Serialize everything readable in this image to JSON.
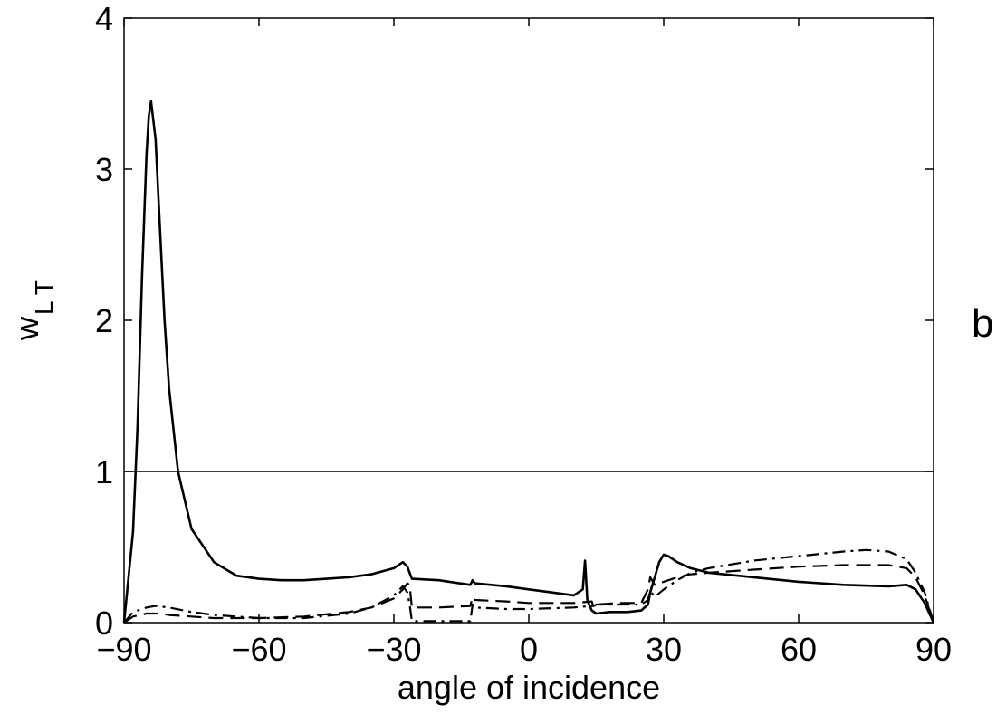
{
  "chart_data": {
    "type": "line",
    "title": "",
    "xlabel": "angle of incidence",
    "ylabel": "w",
    "ylabel_sub": "L T",
    "panel_label": "b",
    "xlim": [
      -90,
      90
    ],
    "ylim": [
      0,
      4
    ],
    "xticks": [
      -90,
      -60,
      -30,
      0,
      30,
      60,
      90
    ],
    "xtick_labels": [
      "−90",
      "−60",
      "−30",
      "0",
      "30",
      "60",
      "90"
    ],
    "yticks": [
      0,
      1,
      2,
      3,
      4
    ],
    "ytick_labels": [
      "0",
      "1",
      "2",
      "3",
      "4"
    ],
    "grid": false,
    "reference_line": {
      "y": 1
    },
    "series": [
      {
        "style": "solid",
        "x": [
          -90,
          -88,
          -87,
          -86,
          -85,
          -84.5,
          -84,
          -83,
          -82,
          -81,
          -80,
          -78,
          -75,
          -70,
          -65,
          -60,
          -55,
          -50,
          -45,
          -40,
          -35,
          -30,
          -28,
          -27,
          -26,
          -20,
          -13,
          -12.5,
          -12,
          -5,
          0,
          5,
          10,
          12,
          12.5,
          13,
          14,
          15,
          18,
          22,
          25,
          26.5,
          27,
          28,
          29,
          30,
          31,
          33,
          36,
          40,
          50,
          60,
          70,
          80,
          84,
          86,
          88,
          90
        ],
        "y": [
          0.0,
          0.6,
          1.3,
          2.3,
          3.1,
          3.35,
          3.45,
          3.2,
          2.6,
          2.0,
          1.55,
          1.0,
          0.62,
          0.4,
          0.31,
          0.29,
          0.28,
          0.28,
          0.29,
          0.3,
          0.32,
          0.36,
          0.4,
          0.37,
          0.29,
          0.28,
          0.25,
          0.28,
          0.26,
          0.24,
          0.22,
          0.2,
          0.18,
          0.22,
          0.41,
          0.15,
          0.08,
          0.06,
          0.07,
          0.07,
          0.08,
          0.12,
          0.2,
          0.3,
          0.4,
          0.45,
          0.44,
          0.4,
          0.36,
          0.33,
          0.3,
          0.27,
          0.25,
          0.24,
          0.25,
          0.22,
          0.13,
          0.0
        ]
      },
      {
        "style": "dashed",
        "x": [
          -90,
          -88,
          -85,
          -82,
          -80,
          -75,
          -70,
          -60,
          -50,
          -40,
          -35,
          -30,
          -28,
          -27,
          -26.5,
          -26,
          -20,
          -13,
          -12.5,
          -12,
          -5,
          0,
          10,
          14,
          14.5,
          15,
          20,
          25,
          26.5,
          27,
          28,
          30,
          33,
          36,
          40,
          50,
          60,
          70,
          80,
          84,
          86,
          88,
          90
        ],
        "y": [
          0.0,
          0.04,
          0.06,
          0.06,
          0.05,
          0.04,
          0.03,
          0.03,
          0.04,
          0.07,
          0.1,
          0.16,
          0.22,
          0.26,
          0.25,
          0.1,
          0.1,
          0.11,
          0.17,
          0.15,
          0.14,
          0.13,
          0.13,
          0.14,
          0.1,
          0.12,
          0.13,
          0.13,
          0.22,
          0.3,
          0.25,
          0.27,
          0.3,
          0.32,
          0.33,
          0.35,
          0.37,
          0.38,
          0.38,
          0.36,
          0.3,
          0.18,
          0.0
        ]
      },
      {
        "style": "dashdot",
        "x": [
          -90,
          -88,
          -85,
          -83,
          -80,
          -75,
          -70,
          -60,
          -50,
          -40,
          -35,
          -30,
          -28,
          -27,
          -26.5,
          -26,
          -20,
          -13,
          -12.5,
          -12,
          -5,
          0,
          10,
          14,
          14.5,
          15,
          20,
          25,
          26.5,
          27,
          28,
          30,
          33,
          36,
          40,
          50,
          60,
          70,
          75,
          80,
          84,
          86,
          88,
          90
        ],
        "y": [
          0.0,
          0.07,
          0.1,
          0.11,
          0.1,
          0.07,
          0.05,
          0.03,
          0.03,
          0.06,
          0.1,
          0.18,
          0.24,
          0.2,
          0.12,
          0.01,
          0.01,
          0.01,
          0.12,
          0.1,
          0.09,
          0.09,
          0.1,
          0.11,
          0.11,
          0.12,
          0.12,
          0.12,
          0.15,
          0.21,
          0.17,
          0.22,
          0.28,
          0.33,
          0.36,
          0.41,
          0.44,
          0.47,
          0.48,
          0.47,
          0.42,
          0.33,
          0.2,
          0.0
        ]
      }
    ]
  }
}
